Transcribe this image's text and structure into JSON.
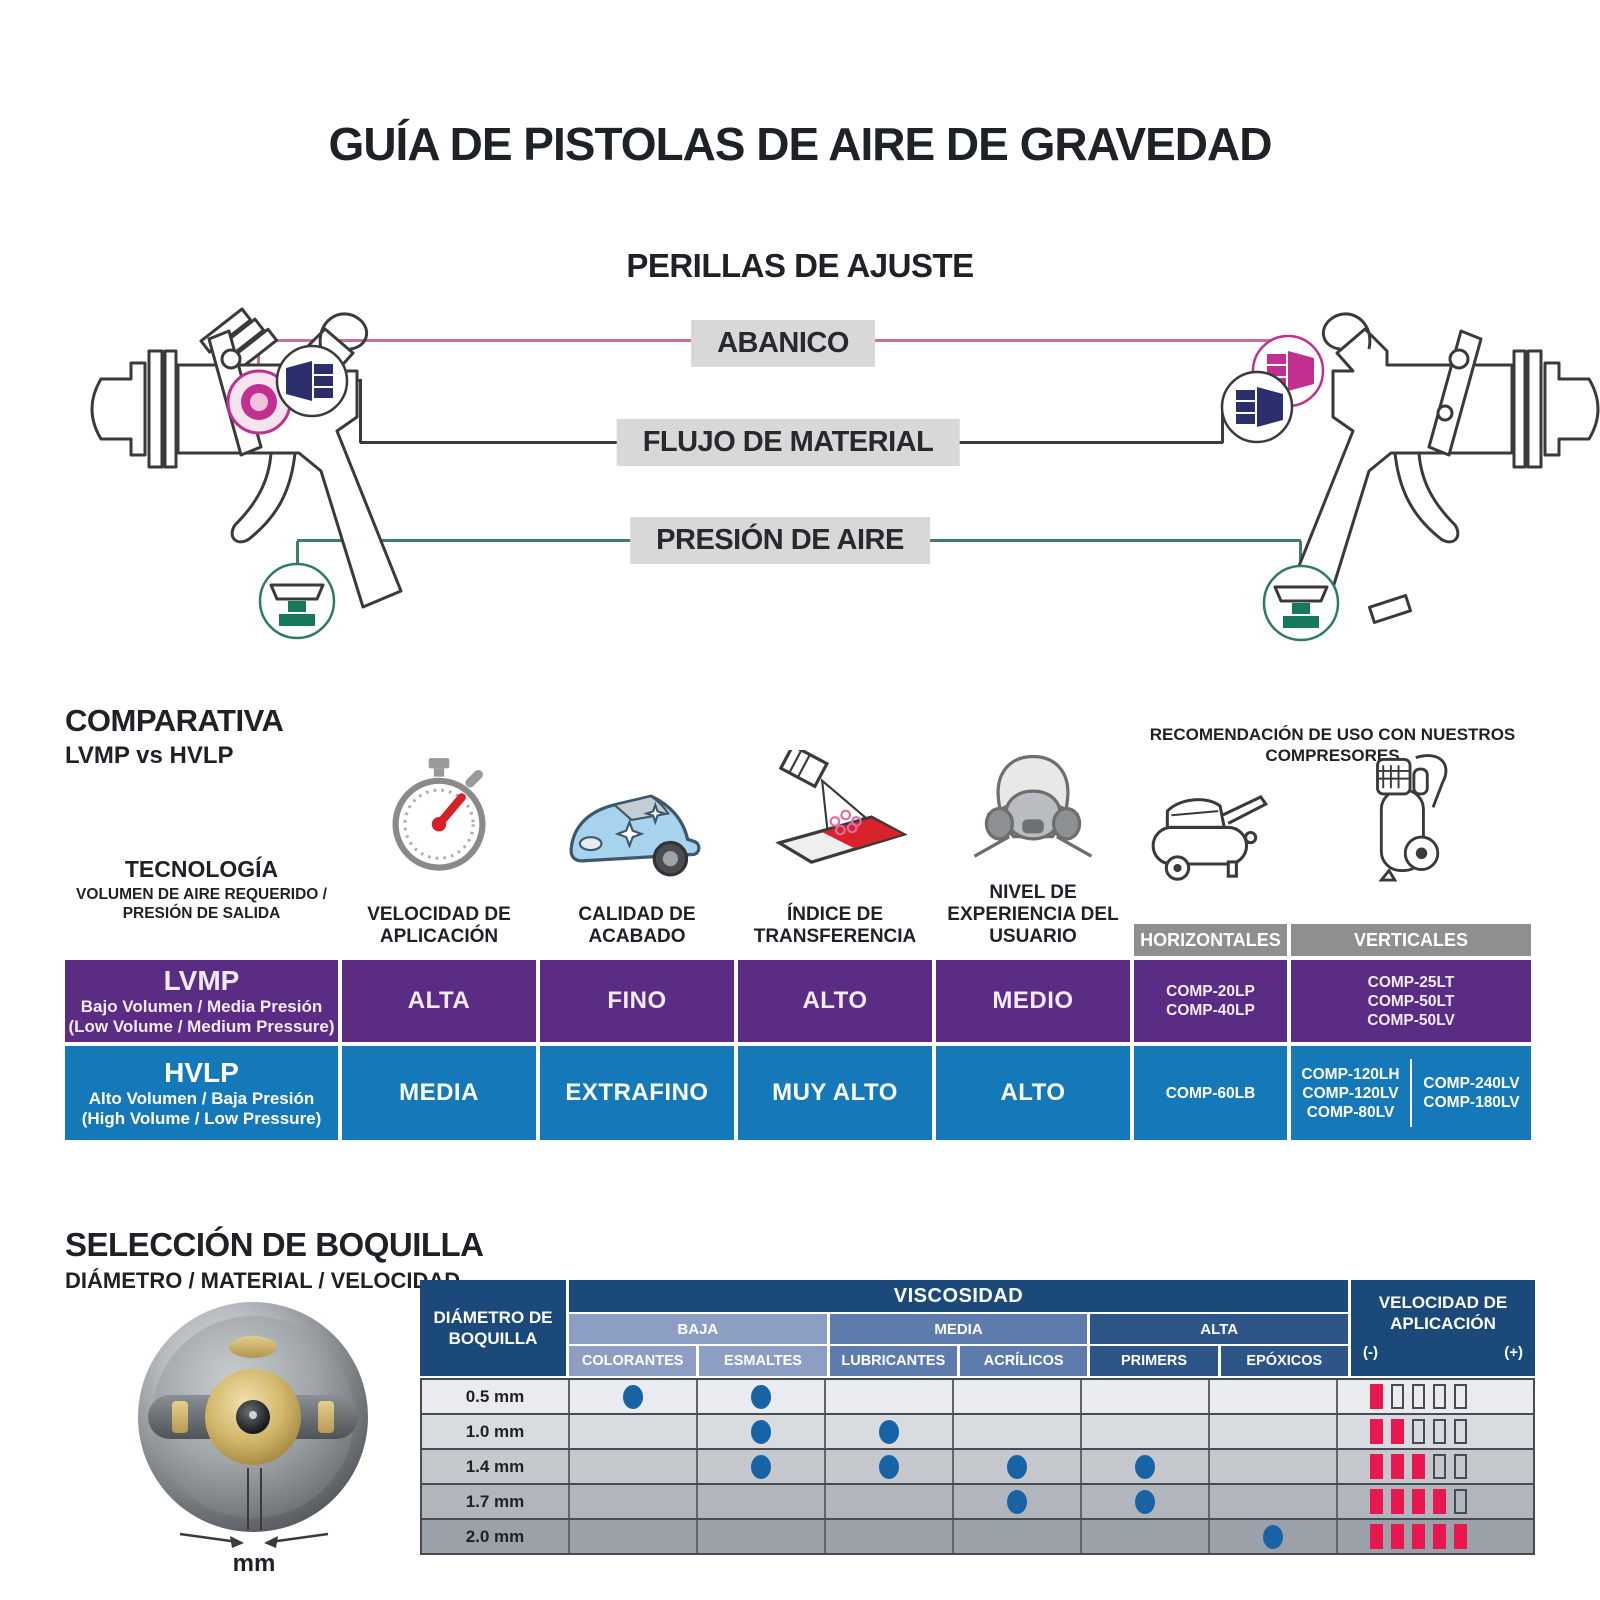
{
  "title": "GUÍA DE PISTOLAS DE AIRE DE GRAVEDAD",
  "knobs": {
    "title": "PERILLAS DE AJUSTE",
    "items": [
      {
        "label": "ABANICO"
      },
      {
        "label": "FLUJO DE MATERIAL"
      },
      {
        "label": "PRESIÓN DE AIRE"
      }
    ]
  },
  "comparative": {
    "heading": "COMPARATIVA",
    "subheading": "LVMP vs HVLP",
    "columns": [
      {
        "title": "TECNOLOGÍA",
        "subtitle": "VOLUMEN DE AIRE REQUERIDO / PRESIÓN DE SALIDA"
      },
      {
        "title": "VELOCIDAD DE APLICACIÓN",
        "icon": "stopwatch-icon"
      },
      {
        "title": "CALIDAD DE ACABADO",
        "icon": "car-icon"
      },
      {
        "title": "ÍNDICE DE TRANSFERENCIA",
        "icon": "spray-transfer-icon"
      },
      {
        "title": "NIVEL DE EXPERIENCIA DEL USUARIO",
        "icon": "respirator-icon"
      }
    ],
    "compressors_heading": "RECOMENDACIÓN DE USO CON NUESTROS COMPRESORES",
    "compressor_columns": [
      "HORIZONTALES",
      "VERTICALES"
    ],
    "rows": [
      {
        "code": "LVMP",
        "name_es": "Bajo Volumen / Media Presión",
        "name_en": "(Low Volume / Medium Pressure)",
        "values": [
          "ALTA",
          "FINO",
          "ALTO",
          "MEDIO"
        ],
        "horizontales": [
          "COMP-20LP",
          "COMP-40LP"
        ],
        "verticales": [
          "COMP-25LT",
          "COMP-50LT",
          "COMP-50LV"
        ]
      },
      {
        "code": "HVLP",
        "name_es": "Alto Volumen / Baja Presión",
        "name_en": "(High Volume / Low Pressure)",
        "values": [
          "MEDIA",
          "EXTRAFINO",
          "MUY ALTO",
          "ALTO"
        ],
        "horizontales": [
          "COMP-60LB"
        ],
        "verticales_left": [
          "COMP-120LH",
          "COMP-120LV",
          "COMP-80LV"
        ],
        "verticales_right": [
          "COMP-240LV",
          "COMP-180LV"
        ]
      }
    ]
  },
  "nozzle": {
    "heading": "SELECCIÓN DE BOQUILLA",
    "subheading": "DIÁMETRO / MATERIAL / VELOCIDAD",
    "mm_label": "mm",
    "table": {
      "diameter_header": "DIÁMETRO DE BOQUILLA",
      "viscosity_header": "VISCOSIDAD",
      "groups": [
        {
          "label": "BAJA",
          "materials": [
            "COLORANTES",
            "ESMALTES"
          ]
        },
        {
          "label": "MEDIA",
          "materials": [
            "LUBRICANTES",
            "ACRÍLICOS"
          ]
        },
        {
          "label": "ALTA",
          "materials": [
            "PRIMERS",
            "EPÓXICOS"
          ]
        }
      ],
      "velocity_header": "VELOCIDAD DE APLICACIÓN",
      "velocity_min": "(-)",
      "velocity_max": "(+)",
      "speed_segments": 5,
      "rows": [
        {
          "diameter": "0.5 mm",
          "dots": [
            1,
            1,
            0,
            0,
            0,
            0
          ],
          "speed": 1
        },
        {
          "diameter": "1.0 mm",
          "dots": [
            0,
            1,
            1,
            0,
            0,
            0
          ],
          "speed": 2
        },
        {
          "diameter": "1.4 mm",
          "dots": [
            0,
            1,
            1,
            1,
            1,
            0
          ],
          "speed": 3
        },
        {
          "diameter": "1.7 mm",
          "dots": [
            0,
            0,
            0,
            1,
            1,
            0
          ],
          "speed": 4
        },
        {
          "diameter": "2.0 mm",
          "dots": [
            0,
            0,
            0,
            0,
            0,
            1
          ],
          "speed": 5
        }
      ]
    }
  },
  "colors": {
    "pink": "#C2308F",
    "pink_light": "#EFC3DF",
    "navy": "#2B2F6B",
    "green": "#17795B",
    "line_pink": "#C4719E",
    "line_dark": "#3A3A3A",
    "line_green": "#3E7E6C",
    "lvmp_purple": "#5B2C83",
    "hvlp_blue": "#1578B8",
    "label_gray": "#D8D8D8",
    "header_gray": "#8F8F8F",
    "table_navy": "#1B4A7A",
    "visc_baja": "#8C9EC3",
    "visc_media": "#5E7BAE",
    "visc_alta": "#2E5588",
    "dot_blue": "#1763A5",
    "bar_red": "#E8174F"
  }
}
